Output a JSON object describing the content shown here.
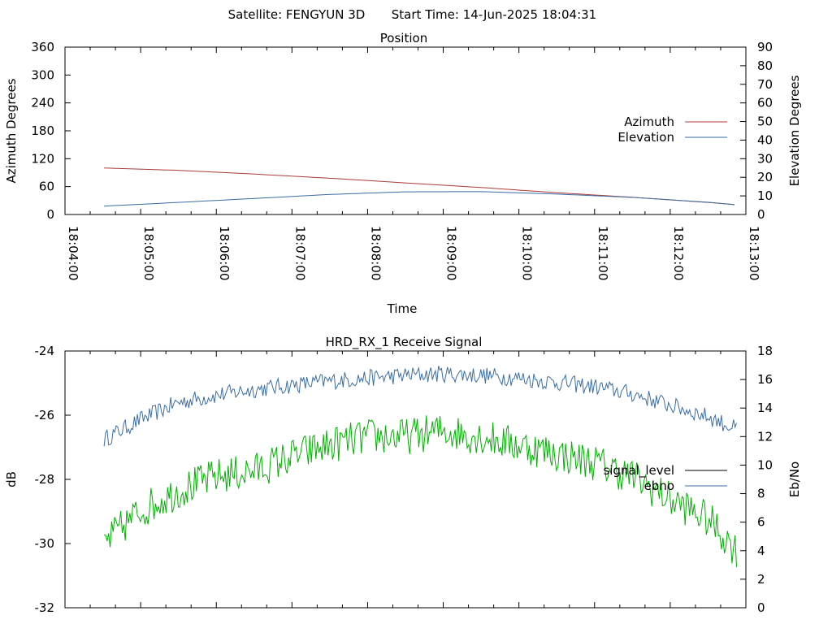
{
  "header": {
    "satellite": "Satellite: FENGYUN 3D",
    "start_time": "Start Time: 14-Jun-2025 18:04:31"
  },
  "chart_data": [
    {
      "type": "line",
      "title": "Position",
      "xlabel": "Time",
      "ylabel_left": "Azimuth Degrees",
      "ylabel_right": "Elevation Degrees",
      "x_ticks": [
        "18:04:00",
        "18:05:00",
        "18:06:00",
        "18:07:00",
        "18:08:00",
        "18:09:00",
        "18:10:00",
        "18:11:00",
        "18:12:00",
        "18:13:00"
      ],
      "y_left_ticks": [
        0,
        60,
        120,
        180,
        240,
        300,
        360
      ],
      "y_right_ticks": [
        0,
        10,
        20,
        30,
        40,
        50,
        60,
        70,
        80,
        90
      ],
      "y_left_range": [
        0,
        360
      ],
      "y_right_range": [
        0,
        90
      ],
      "legend_position": "right",
      "series": [
        {
          "name": "Azimuth",
          "axis": "left",
          "color": "#b03a3a",
          "x": [
            "18:04:31",
            "18:05:30",
            "18:06:30",
            "18:07:30",
            "18:08:30",
            "18:09:30",
            "18:10:30",
            "18:11:30",
            "18:12:30",
            "18:12:53"
          ],
          "y": [
            100,
            95,
            87,
            78,
            68,
            58,
            47,
            37,
            26,
            21
          ]
        },
        {
          "name": "Elevation",
          "axis": "right",
          "color": "#3a6ea5",
          "x": [
            "18:04:31",
            "18:05:30",
            "18:06:30",
            "18:07:30",
            "18:08:30",
            "18:09:30",
            "18:10:30",
            "18:11:30",
            "18:12:30",
            "18:12:53"
          ],
          "y": [
            4.5,
            6.5,
            8.6,
            10.8,
            12.2,
            12.3,
            11.0,
            9.2,
            6.6,
            5.1
          ]
        }
      ]
    },
    {
      "type": "line",
      "title": "HRD_RX_1 Receive Signal",
      "ylabel_left": "dB",
      "ylabel_right": "Eb/No",
      "x_range": [
        "18:04:00",
        "18:13:00"
      ],
      "y_left_ticks": [
        -32,
        -30,
        -28,
        -26,
        -24
      ],
      "y_right_ticks": [
        0,
        2,
        4,
        6,
        8,
        10,
        12,
        14,
        16,
        18
      ],
      "y_left_range": [
        -32,
        -24
      ],
      "y_right_range": [
        0,
        18
      ],
      "legend_position": "right",
      "series": [
        {
          "name": "signal_level",
          "axis": "left",
          "color": "#000000",
          "x": [],
          "y": []
        },
        {
          "name": "ebno",
          "axis": "right",
          "color": "#3a6ea5",
          "x": [
            "18:04:31",
            "18:05:00",
            "18:05:30",
            "18:06:00",
            "18:06:30",
            "18:07:00",
            "18:07:30",
            "18:08:00",
            "18:08:30",
            "18:09:00",
            "18:09:30",
            "18:10:00",
            "18:10:30",
            "18:11:00",
            "18:11:30",
            "18:12:00",
            "18:12:30",
            "18:12:53"
          ],
          "y": [
            11.8,
            13.2,
            14.4,
            14.9,
            15.3,
            15.6,
            15.9,
            16.1,
            16.3,
            16.4,
            16.3,
            16.1,
            15.8,
            15.5,
            15.0,
            14.2,
            13.4,
            12.5
          ]
        },
        {
          "name": "",
          "axis": "right",
          "color": "#00b000",
          "x": [
            "18:04:31",
            "18:05:00",
            "18:05:30",
            "18:06:00",
            "18:06:30",
            "18:07:00",
            "18:07:30",
            "18:08:00",
            "18:08:30",
            "18:09:00",
            "18:09:30",
            "18:10:00",
            "18:10:30",
            "18:11:00",
            "18:11:30",
            "18:12:00",
            "18:12:30",
            "18:12:53"
          ],
          "y": [
            4.5,
            6.8,
            8.2,
            9.2,
            9.6,
            10.6,
            11.4,
            12.0,
            12.0,
            12.4,
            12.0,
            11.4,
            10.8,
            10.2,
            9.2,
            7.6,
            6.2,
            4.0
          ]
        }
      ]
    }
  ]
}
